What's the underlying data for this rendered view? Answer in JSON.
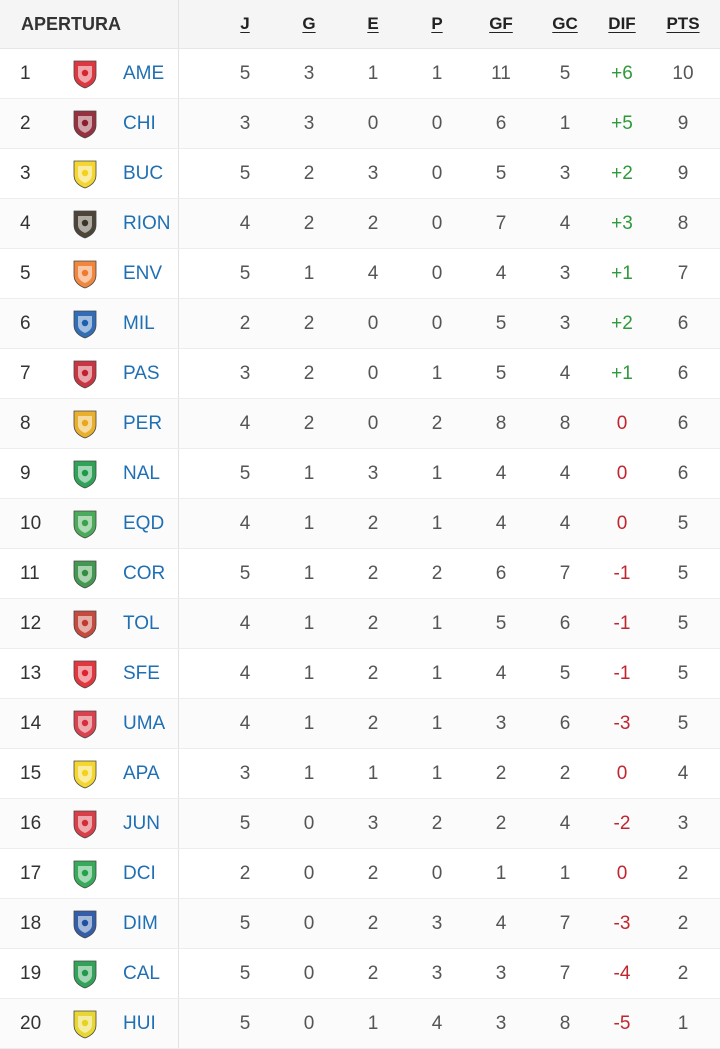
{
  "header": {
    "title": "APERTURA",
    "columns": [
      "J",
      "G",
      "E",
      "P",
      "GF",
      "GC",
      "DIF",
      "PTS"
    ]
  },
  "rows": [
    {
      "pos": "1",
      "team": "AME",
      "j": "5",
      "g": "3",
      "e": "1",
      "p": "1",
      "gf": "11",
      "gc": "5",
      "dif": "+6",
      "pts": "10",
      "logo_icon": "america-crest-icon",
      "color": "#d9232e"
    },
    {
      "pos": "2",
      "team": "CHI",
      "j": "3",
      "g": "3",
      "e": "0",
      "p": "0",
      "gf": "6",
      "gc": "1",
      "dif": "+5",
      "pts": "9",
      "logo_icon": "chico-crest-icon",
      "color": "#8b1d2c"
    },
    {
      "pos": "3",
      "team": "BUC",
      "j": "5",
      "g": "2",
      "e": "3",
      "p": "0",
      "gf": "5",
      "gc": "3",
      "dif": "+2",
      "pts": "9",
      "logo_icon": "bucaramanga-crest-icon",
      "color": "#f2d21b"
    },
    {
      "pos": "4",
      "team": "RION",
      "j": "4",
      "g": "2",
      "e": "2",
      "p": "0",
      "gf": "7",
      "gc": "4",
      "dif": "+3",
      "pts": "8",
      "logo_icon": "rionegro-crest-icon",
      "color": "#3b3324"
    },
    {
      "pos": "5",
      "team": "ENV",
      "j": "5",
      "g": "1",
      "e": "4",
      "p": "0",
      "gf": "4",
      "gc": "3",
      "dif": "+1",
      "pts": "7",
      "logo_icon": "envigado-crest-icon",
      "color": "#f07a2b"
    },
    {
      "pos": "6",
      "team": "MIL",
      "j": "2",
      "g": "2",
      "e": "0",
      "p": "0",
      "gf": "5",
      "gc": "3",
      "dif": "+2",
      "pts": "6",
      "logo_icon": "millonarios-crest-icon",
      "color": "#1c5fae"
    },
    {
      "pos": "7",
      "team": "PAS",
      "j": "3",
      "g": "2",
      "e": "0",
      "p": "1",
      "gf": "5",
      "gc": "4",
      "dif": "+1",
      "pts": "6",
      "logo_icon": "pasto-crest-icon",
      "color": "#c4212f"
    },
    {
      "pos": "8",
      "team": "PER",
      "j": "4",
      "g": "2",
      "e": "0",
      "p": "2",
      "gf": "8",
      "gc": "8",
      "dif": "0",
      "pts": "6",
      "logo_icon": "pereira-crest-icon",
      "color": "#e8a818"
    },
    {
      "pos": "9",
      "team": "NAL",
      "j": "5",
      "g": "1",
      "e": "3",
      "p": "1",
      "gf": "4",
      "gc": "4",
      "dif": "0",
      "pts": "6",
      "logo_icon": "nacional-crest-icon",
      "color": "#1b9a48"
    },
    {
      "pos": "10",
      "team": "EQD",
      "j": "4",
      "g": "1",
      "e": "2",
      "p": "1",
      "gf": "4",
      "gc": "4",
      "dif": "0",
      "pts": "5",
      "logo_icon": "equidad-crest-icon",
      "color": "#3aa34a"
    },
    {
      "pos": "11",
      "team": "COR",
      "j": "5",
      "g": "1",
      "e": "2",
      "p": "2",
      "gf": "6",
      "gc": "7",
      "dif": "-1",
      "pts": "5",
      "logo_icon": "jaguares-crest-icon",
      "color": "#2f8f3f"
    },
    {
      "pos": "12",
      "team": "TOL",
      "j": "4",
      "g": "1",
      "e": "2",
      "p": "1",
      "gf": "5",
      "gc": "6",
      "dif": "-1",
      "pts": "5",
      "logo_icon": "tolima-crest-icon",
      "color": "#c0392b"
    },
    {
      "pos": "13",
      "team": "SFE",
      "j": "4",
      "g": "1",
      "e": "2",
      "p": "1",
      "gf": "4",
      "gc": "5",
      "dif": "-1",
      "pts": "5",
      "logo_icon": "santa-fe-crest-icon",
      "color": "#e0222c"
    },
    {
      "pos": "14",
      "team": "UMA",
      "j": "4",
      "g": "1",
      "e": "2",
      "p": "1",
      "gf": "3",
      "gc": "6",
      "dif": "-3",
      "pts": "5",
      "logo_icon": "union-magdalena-crest-icon",
      "color": "#d62e3d"
    },
    {
      "pos": "15",
      "team": "APA",
      "j": "3",
      "g": "1",
      "e": "1",
      "p": "1",
      "gf": "2",
      "gc": "2",
      "dif": "0",
      "pts": "4",
      "logo_icon": "alianza-crest-icon",
      "color": "#f3d21a"
    },
    {
      "pos": "16",
      "team": "JUN",
      "j": "5",
      "g": "0",
      "e": "3",
      "p": "2",
      "gf": "2",
      "gc": "4",
      "dif": "-2",
      "pts": "3",
      "logo_icon": "junior-crest-icon",
      "color": "#d52b36"
    },
    {
      "pos": "17",
      "team": "DCI",
      "j": "2",
      "g": "0",
      "e": "2",
      "p": "0",
      "gf": "1",
      "gc": "1",
      "dif": "0",
      "pts": "2",
      "logo_icon": "deportivo-cali-crest-icon",
      "color": "#22a24a"
    },
    {
      "pos": "18",
      "team": "DIM",
      "j": "5",
      "g": "0",
      "e": "2",
      "p": "3",
      "gf": "4",
      "gc": "7",
      "dif": "-3",
      "pts": "2",
      "logo_icon": "medellin-crest-icon",
      "color": "#1f4fa0"
    },
    {
      "pos": "19",
      "team": "CAL",
      "j": "5",
      "g": "0",
      "e": "2",
      "p": "3",
      "gf": "3",
      "gc": "7",
      "dif": "-4",
      "pts": "2",
      "logo_icon": "boyaca-chico-crest-icon",
      "color": "#1f9a49"
    },
    {
      "pos": "20",
      "team": "HUI",
      "j": "5",
      "g": "0",
      "e": "1",
      "p": "4",
      "gf": "3",
      "gc": "8",
      "dif": "-5",
      "pts": "1",
      "logo_icon": "huila-crest-icon",
      "color": "#e7d21e"
    }
  ]
}
